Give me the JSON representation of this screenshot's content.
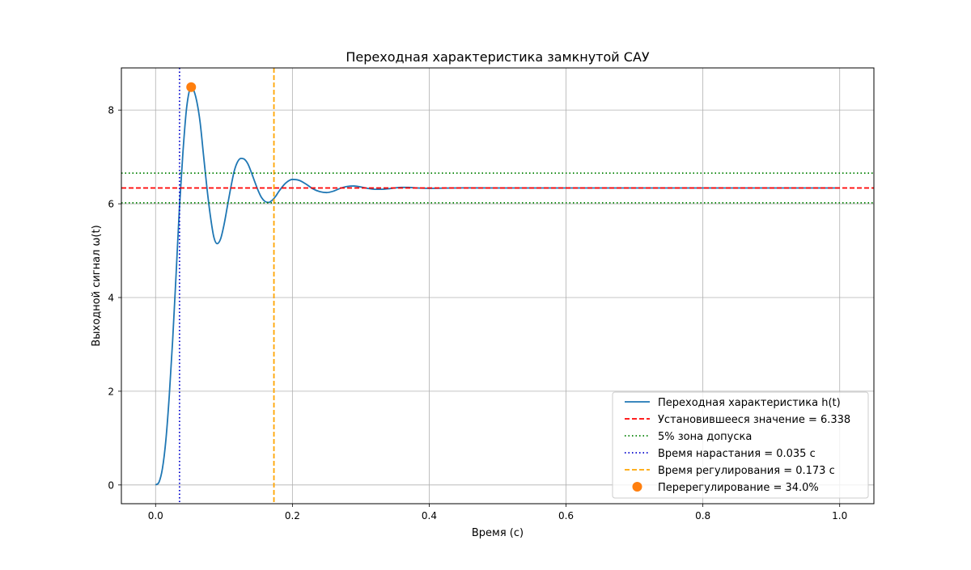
{
  "chart_data": {
    "type": "line",
    "title": "Переходная характеристика замкнутой САУ",
    "xlabel": "Время (с)",
    "ylabel": "Выходной сигнал ω(t)",
    "xlim": [
      -0.05,
      1.05
    ],
    "ylim": [
      -0.4,
      8.9
    ],
    "xticks": [
      0.0,
      0.2,
      0.4,
      0.6,
      0.8,
      1.0
    ],
    "xtick_labels": [
      "0.0",
      "0.2",
      "0.4",
      "0.6",
      "0.8",
      "1.0"
    ],
    "yticks": [
      0,
      2,
      4,
      6,
      8
    ],
    "ytick_labels": [
      "0",
      "2",
      "4",
      "6",
      "8"
    ],
    "grid": true,
    "legend_position": "bottom-right",
    "response": {
      "label": "Переходная характеристика h(t)",
      "color": "#1f77b4",
      "points": [
        [
          0.0,
          0.0
        ],
        [
          0.005,
          0.06
        ],
        [
          0.01,
          0.35
        ],
        [
          0.015,
          0.95
        ],
        [
          0.02,
          1.9
        ],
        [
          0.025,
          3.1
        ],
        [
          0.03,
          4.5
        ],
        [
          0.035,
          5.95
        ],
        [
          0.04,
          7.1
        ],
        [
          0.045,
          8.0
        ],
        [
          0.05,
          8.45
        ],
        [
          0.052,
          8.49
        ],
        [
          0.055,
          8.45
        ],
        [
          0.06,
          8.2
        ],
        [
          0.065,
          7.75
        ],
        [
          0.07,
          7.05
        ],
        [
          0.075,
          6.35
        ],
        [
          0.08,
          5.75
        ],
        [
          0.085,
          5.3
        ],
        [
          0.09,
          5.15
        ],
        [
          0.095,
          5.25
        ],
        [
          0.1,
          5.55
        ],
        [
          0.105,
          5.95
        ],
        [
          0.11,
          6.35
        ],
        [
          0.115,
          6.7
        ],
        [
          0.12,
          6.9
        ],
        [
          0.125,
          6.97
        ],
        [
          0.13,
          6.95
        ],
        [
          0.135,
          6.85
        ],
        [
          0.14,
          6.67
        ],
        [
          0.145,
          6.47
        ],
        [
          0.15,
          6.28
        ],
        [
          0.155,
          6.13
        ],
        [
          0.16,
          6.05
        ],
        [
          0.165,
          6.03
        ],
        [
          0.17,
          6.07
        ],
        [
          0.175,
          6.15
        ],
        [
          0.18,
          6.26
        ],
        [
          0.19,
          6.44
        ],
        [
          0.2,
          6.52
        ],
        [
          0.21,
          6.5
        ],
        [
          0.22,
          6.42
        ],
        [
          0.23,
          6.32
        ],
        [
          0.24,
          6.26
        ],
        [
          0.25,
          6.24
        ],
        [
          0.26,
          6.27
        ],
        [
          0.27,
          6.33
        ],
        [
          0.28,
          6.37
        ],
        [
          0.29,
          6.38
        ],
        [
          0.3,
          6.36
        ],
        [
          0.31,
          6.33
        ],
        [
          0.32,
          6.31
        ],
        [
          0.33,
          6.31
        ],
        [
          0.34,
          6.32
        ],
        [
          0.35,
          6.34
        ],
        [
          0.36,
          6.35
        ],
        [
          0.37,
          6.35
        ],
        [
          0.38,
          6.34
        ],
        [
          0.4,
          6.33
        ],
        [
          0.45,
          6.34
        ],
        [
          0.5,
          6.338
        ],
        [
          0.6,
          6.338
        ],
        [
          0.7,
          6.338
        ],
        [
          0.8,
          6.338
        ],
        [
          0.9,
          6.338
        ],
        [
          1.0,
          6.338
        ]
      ]
    },
    "steady_state": {
      "value": 6.338,
      "label": "Установившееся значение = 6.338",
      "color": "#ff0000"
    },
    "tolerance_band": {
      "lower": 6.021,
      "upper": 6.655,
      "label": "5% зона допуска",
      "color": "#008000"
    },
    "rise_time": {
      "value": 0.035,
      "label": "Время нарастания = 0.035 с",
      "color": "#0000cc"
    },
    "settling_time": {
      "value": 0.173,
      "label": "Время регулирования = 0.173 с",
      "color": "#ffa500"
    },
    "overshoot": {
      "x": 0.052,
      "y": 8.49,
      "label": "Перерегулирование = 34.0%",
      "color": "#ff7f0e"
    }
  }
}
